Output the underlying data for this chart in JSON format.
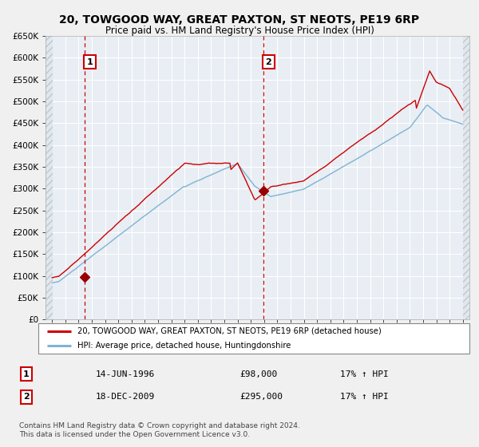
{
  "title1": "20, TOWGOOD WAY, GREAT PAXTON, ST NEOTS, PE19 6RP",
  "title2": "Price paid vs. HM Land Registry's House Price Index (HPI)",
  "legend_line1": "20, TOWGOOD WAY, GREAT PAXTON, ST NEOTS, PE19 6RP (detached house)",
  "legend_line2": "HPI: Average price, detached house, Huntingdonshire",
  "annotation1_num": "1",
  "annotation1_date": "14-JUN-1996",
  "annotation1_price": "£98,000",
  "annotation1_hpi": "17% ↑ HPI",
  "annotation2_num": "2",
  "annotation2_date": "18-DEC-2009",
  "annotation2_price": "£295,000",
  "annotation2_hpi": "17% ↑ HPI",
  "footer": "Contains HM Land Registry data © Crown copyright and database right 2024.\nThis data is licensed under the Open Government Licence v3.0.",
  "red_line_color": "#cc0000",
  "blue_line_color": "#7fb3d3",
  "bg_color": "#f0f0f0",
  "plot_bg_color": "#e8eef4",
  "grid_color": "#ffffff",
  "vline_color": "#cc0000",
  "marker_color": "#990000",
  "annotation_box_color": "#cc0000",
  "ylim": [
    0,
    650000
  ],
  "yticks": [
    0,
    50000,
    100000,
    150000,
    200000,
    250000,
    300000,
    350000,
    400000,
    450000,
    500000,
    550000,
    600000,
    650000
  ],
  "sale1_year": 1996.45,
  "sale1_price": 98000,
  "sale2_year": 2009.96,
  "sale2_price": 295000,
  "xmin": 1994,
  "xmax": 2025
}
